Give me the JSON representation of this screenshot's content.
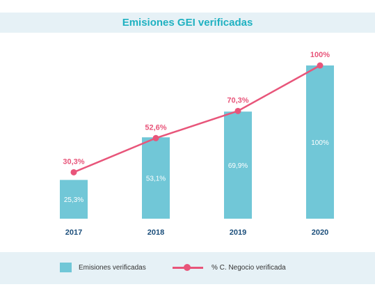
{
  "title": "Emisiones GEI verificadas",
  "colors": {
    "bar": "#71c7d7",
    "line": "#e8557a",
    "band": "#e6f1f6",
    "title": "#1fb1c1",
    "year": "#1a4d7a"
  },
  "chart_data": {
    "type": "bar",
    "title": "Emisiones GEI verificadas",
    "categories": [
      "2017",
      "2018",
      "2019",
      "2020"
    ],
    "ylim": [
      0,
      100
    ],
    "grid": false,
    "legend_placement": "bottom",
    "series": [
      {
        "name": "Emisiones verificadas",
        "type": "bar",
        "values": [
          25.3,
          53.1,
          69.9,
          100
        ],
        "labels": [
          "25,3%",
          "53,1%",
          "69,9%",
          "100%"
        ]
      },
      {
        "name": "% C. Negocio verificada",
        "type": "line",
        "values": [
          30.3,
          52.6,
          70.3,
          100
        ],
        "labels": [
          "30,3%",
          "52,6%",
          "70,3%",
          "100%"
        ]
      }
    ]
  },
  "legend": {
    "bar_label": "Emisiones verificadas",
    "line_label": "% C. Negocio verificada"
  }
}
